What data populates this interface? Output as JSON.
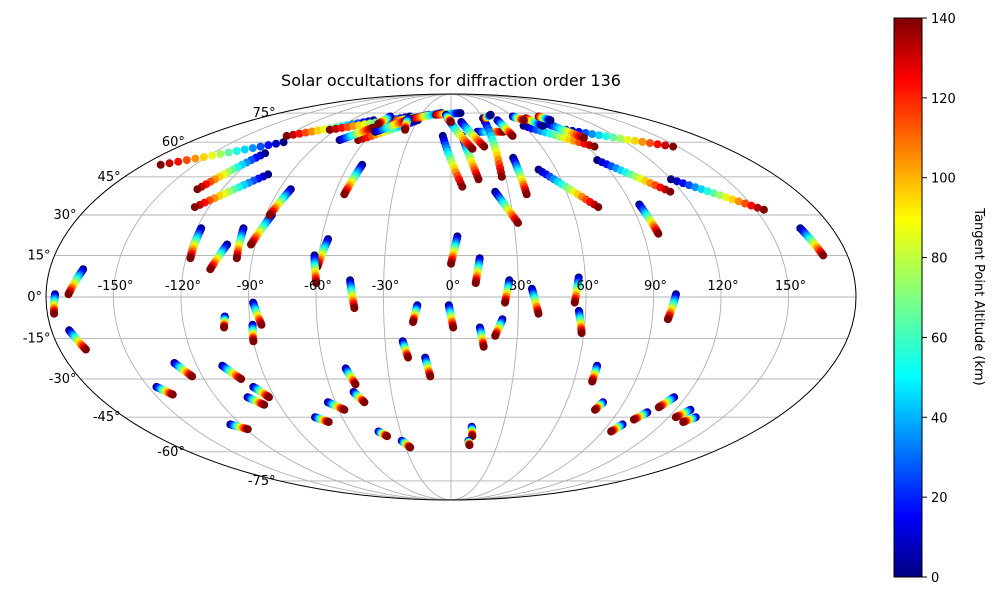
{
  "chart_data": {
    "type": "scatter",
    "projection": "mollweide",
    "title": "Solar occultations for diffraction order 136",
    "colorbar": {
      "label": "Tangent Point Altitude (km)",
      "colormap": "jet",
      "range": [
        0,
        140
      ],
      "ticks": [
        "0",
        "20",
        "40",
        "60",
        "80",
        "100",
        "120",
        "140"
      ]
    },
    "longitude_ticks": [
      "-150°",
      "-120°",
      "-90°",
      "-60°",
      "-30°",
      "0°",
      "30°",
      "60°",
      "90°",
      "120°",
      "150°"
    ],
    "latitude_ticks": [
      "75°",
      "60°",
      "45°",
      "30°",
      "15°",
      "0°",
      "-15°",
      "-30°",
      "-45°",
      "-60°",
      "-75°"
    ],
    "grid": true,
    "legend": "none",
    "altitude_range_km": [
      0,
      140
    ],
    "tracks": [
      {
        "lon0": -176,
        "lat0": 1,
        "lon1": -177,
        "lat1": -6,
        "low_end": 0
      },
      {
        "lon0": -165,
        "lat0": 10,
        "lon1": -170,
        "lat1": 1,
        "low_end": 0
      },
      {
        "lon0": -172,
        "lat0": -12,
        "lon1": -168,
        "lat1": -19,
        "low_end": 0
      },
      {
        "lon0": -146,
        "lat0": -33,
        "lon1": -141,
        "lat1": -36,
        "low_end": 0
      },
      {
        "lon0": -130,
        "lat0": -24,
        "lon1": -125,
        "lat1": -29,
        "low_end": 0
      },
      {
        "lon0": -126,
        "lat0": -48,
        "lon1": -119,
        "lat1": -50,
        "low_end": 0
      },
      {
        "lon0": -118,
        "lat0": 25,
        "lon1": -118,
        "lat1": 14,
        "low_end": 0
      },
      {
        "lon0": -103,
        "lat0": 19,
        "lon1": -108,
        "lat1": 10,
        "low_end": 0
      },
      {
        "lon0": -98,
        "lat0": 25,
        "lon1": -97,
        "lat1": 14,
        "low_end": 0
      },
      {
        "lon0": -102,
        "lat0": 46,
        "lon1": -127,
        "lat1": 33,
        "low_end": 0
      },
      {
        "lon0": -117,
        "lat0": 55,
        "lon1": -133,
        "lat1": 40,
        "low_end": 0
      },
      {
        "lon0": -101,
        "lat0": -7,
        "lon1": -102,
        "lat1": -11,
        "low_end": 0
      },
      {
        "lon0": -108,
        "lat0": -25,
        "lon1": -102,
        "lat1": -30,
        "low_end": 0
      },
      {
        "lon0": -104,
        "lat0": -37,
        "lon1": -98,
        "lat1": -40,
        "low_end": 0
      },
      {
        "lon0": -98,
        "lat0": -33,
        "lon1": -93,
        "lat1": -37,
        "low_end": 0
      },
      {
        "lon0": -87,
        "lat0": 30,
        "lon1": -92,
        "lat1": 19,
        "low_end": 0
      },
      {
        "lon0": -84,
        "lat0": 40,
        "lon1": -88,
        "lat1": 30,
        "low_end": 0
      },
      {
        "lon0": -88,
        "lat0": -2,
        "lon1": -85,
        "lat1": -10,
        "low_end": 0
      },
      {
        "lon0": -89,
        "lat0": -10,
        "lon1": -90,
        "lat1": -16,
        "low_end": 0
      },
      {
        "lon0": -75,
        "lat0": -45,
        "lon1": -69,
        "lat1": -47,
        "low_end": 0
      },
      {
        "lon0": -64,
        "lat0": -39,
        "lon1": -57,
        "lat1": -42,
        "low_end": 0
      },
      {
        "lon0": -57,
        "lat0": 21,
        "lon1": -60,
        "lat1": 11,
        "low_end": 0
      },
      {
        "lon0": -62,
        "lat0": 15,
        "lon1": -60,
        "lat1": 5,
        "low_end": 0
      },
      {
        "lon0": -52,
        "lat0": 50,
        "lon1": -55,
        "lat1": 38,
        "low_end": 0
      },
      {
        "lon0": -45,
        "lat0": 6,
        "lon1": -43,
        "lat1": -4,
        "low_end": 0
      },
      {
        "lon0": -50,
        "lat0": -26,
        "lon1": -47,
        "lat1": -32,
        "low_end": 0
      },
      {
        "lon0": -49,
        "lat0": -35,
        "lon1": -45,
        "lat1": -39,
        "low_end": 0
      },
      {
        "lon0": -43,
        "lat0": -51,
        "lon1": -39,
        "lat1": -53,
        "low_end": 0
      },
      {
        "lon0": -31,
        "lat0": -55,
        "lon1": -27,
        "lat1": -58,
        "low_end": 0
      },
      {
        "lon0": -22,
        "lat0": -16,
        "lon1": -20,
        "lat1": -22,
        "low_end": 0
      },
      {
        "lon0": -15,
        "lat0": -3,
        "lon1": -17,
        "lat1": -9,
        "low_end": 0
      },
      {
        "lon0": -12,
        "lat0": -22,
        "lon1": -10,
        "lat1": -29,
        "low_end": 0
      },
      {
        "lon0": -1,
        "lat0": -3,
        "lon1": 1,
        "lat1": -11,
        "low_end": 0
      },
      {
        "lon0": 3,
        "lat0": 22,
        "lon1": 0,
        "lat1": 12,
        "low_end": 0
      },
      {
        "lon0": 13,
        "lat0": 14,
        "lon1": 11,
        "lat1": 5,
        "low_end": 0
      },
      {
        "lon0": 13,
        "lat0": -11,
        "lon1": 15,
        "lat1": -18,
        "low_end": 0
      },
      {
        "lon0": 23,
        "lat0": -8,
        "lon1": 20,
        "lat1": -14,
        "low_end": 0
      },
      {
        "lon0": 26,
        "lat0": 6,
        "lon1": 24,
        "lat1": -2,
        "low_end": 0
      },
      {
        "lon0": 36,
        "lat0": 3,
        "lon1": 39,
        "lat1": -6,
        "low_end": 0
      },
      {
        "lon0": 57,
        "lat0": 7,
        "lon1": 55,
        "lat1": -2,
        "low_end": 0
      },
      {
        "lon0": 57,
        "lat0": -5,
        "lon1": 59,
        "lat1": -13,
        "low_end": 0
      },
      {
        "lon0": 69,
        "lat0": -25,
        "lon1": 69,
        "lat1": -31,
        "low_end": 0
      },
      {
        "lon0": 79,
        "lat0": -39,
        "lon1": 77,
        "lat1": -42,
        "low_end": 0
      },
      {
        "lon0": 100,
        "lat0": 1,
        "lon1": 97,
        "lat1": -8,
        "low_end": 0
      },
      {
        "lon0": 94,
        "lat0": 34,
        "lon1": 97,
        "lat1": 23,
        "low_end": 0
      },
      {
        "lon0": 114,
        "lat0": -37,
        "lon1": 110,
        "lat1": -41,
        "low_end": 0
      },
      {
        "lon0": 106,
        "lat0": -43,
        "lon1": 102,
        "lat1": -46,
        "low_end": 0
      },
      {
        "lon0": 98,
        "lat0": -48,
        "lon1": 95,
        "lat1": -51,
        "low_end": 0
      },
      {
        "lon0": 128,
        "lat0": -42,
        "lon1": 124,
        "lat1": -45,
        "low_end": 0
      },
      {
        "lon0": 135,
        "lat0": -45,
        "lon1": 131,
        "lat1": -47,
        "low_end": 0
      },
      {
        "lon0": 165,
        "lat0": 25,
        "lon1": 169,
        "lat1": 15,
        "low_end": 0
      },
      {
        "lon0": 120,
        "lat0": 44,
        "lon1": 154,
        "lat1": 32,
        "low_end": 0
      },
      {
        "lon0": 88,
        "lat0": 52,
        "lon1": 114,
        "lat1": 39,
        "low_end": 0
      },
      {
        "lon0": 50,
        "lat0": 48,
        "lon1": 73,
        "lat1": 33,
        "low_end": 0
      },
      {
        "lon0": 38,
        "lat0": 53,
        "lon1": 39,
        "lat1": 38,
        "low_end": 0
      },
      {
        "lon0": 23,
        "lat0": 39,
        "lon1": 32,
        "lat1": 27,
        "low_end": 0
      },
      {
        "lon0": 20,
        "lat0": 65,
        "lon1": 40,
        "lat1": 65,
        "low_end": 0
      },
      {
        "lon0": 8,
        "lat0": 63,
        "lon1": 15,
        "lat1": 44,
        "low_end": 0
      },
      {
        "lon0": -6,
        "lat0": 63,
        "lon1": 6,
        "lat1": 41,
        "low_end": 0
      },
      {
        "lon0": -3,
        "lat0": 72,
        "lon1": 14,
        "lat1": 57,
        "low_end": 0
      },
      {
        "lon0": 9,
        "lat0": 70,
        "lon1": 22,
        "lat1": 58,
        "low_end": 0
      },
      {
        "lon0": 30,
        "lat0": 72,
        "lon1": 28,
        "lat1": 45,
        "low_end": 0
      },
      {
        "lon0": 42,
        "lat0": 71,
        "lon1": 45,
        "lat1": 63,
        "low_end": 0
      },
      {
        "lon0": 60,
        "lat0": 68,
        "lon1": 95,
        "lat1": 58,
        "low_end": 0
      },
      {
        "lon0": 90,
        "lat0": 66,
        "lon1": 147,
        "lat1": 58,
        "low_end": 0
      },
      {
        "lon0": 82,
        "lat0": 69,
        "lon1": 95,
        "lat1": 62,
        "low_end": 0
      },
      {
        "lon0": 70,
        "lat0": 72,
        "lon1": 76,
        "lat1": 68,
        "low_end": 1
      },
      {
        "lon0": 85,
        "lat0": 73,
        "lon1": 90,
        "lat1": 71,
        "low_end": 1
      },
      {
        "lon0": -170,
        "lat0": 50,
        "lon1": -115,
        "lat1": 60,
        "low_end": 1
      },
      {
        "lon0": -120,
        "lat0": 63,
        "lon1": -70,
        "lat1": 71,
        "low_end": 1
      },
      {
        "lon0": -95,
        "lat0": 66,
        "lon1": -40,
        "lat1": 73,
        "low_end": 1
      },
      {
        "lon0": -65,
        "lat0": 61,
        "lon1": -30,
        "lat1": 71,
        "low_end": 1
      },
      {
        "lon0": -55,
        "lat0": 70,
        "lon1": -22,
        "lat1": 74,
        "low_end": 1
      },
      {
        "lon0": -35,
        "lat0": 72,
        "lon1": -10,
        "lat1": 75,
        "low_end": 1
      },
      {
        "lon0": -15,
        "lat0": 74,
        "lon1": 10,
        "lat1": 75,
        "low_end": 1
      },
      {
        "lon0": -5,
        "lat0": 74,
        "lon1": 0,
        "lat1": 70,
        "low_end": 0
      },
      {
        "lon0": -78,
        "lat0": 61,
        "lon1": -63,
        "lat1": 67,
        "low_end": 0
      },
      {
        "lon0": -58,
        "lat0": 65,
        "lon1": -40,
        "lat1": 71,
        "low_end": 0
      },
      {
        "lon0": -59,
        "lat0": 73,
        "lon1": -62,
        "lat1": 69,
        "low_end": 0
      },
      {
        "lon0": -40,
        "lat0": 72,
        "lon1": -36,
        "lat1": 66,
        "low_end": 0
      },
      {
        "lon0": 32,
        "lat0": 72,
        "lon1": 40,
        "lat1": 74,
        "low_end": 1
      },
      {
        "lon0": 60,
        "lat0": 73,
        "lon1": 66,
        "lat1": 71,
        "low_end": 0
      },
      {
        "lon0": 12,
        "lat0": -49,
        "lon1": 13,
        "lat1": -53,
        "low_end": 0
      },
      {
        "lon0": 11,
        "lat0": -55,
        "lon1": 12,
        "lat1": -57,
        "low_end": 0
      }
    ]
  }
}
